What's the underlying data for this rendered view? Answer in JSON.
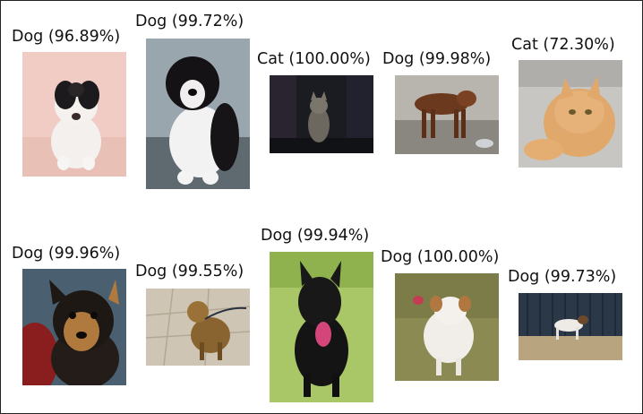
{
  "predictions": [
    {
      "label": "Dog (96.89%)",
      "subject": "dog-photo"
    },
    {
      "label": "Dog (99.72%)",
      "subject": "dog-photo"
    },
    {
      "label": "Cat (100.00%)",
      "subject": "cat-photo"
    },
    {
      "label": "Dog (99.98%)",
      "subject": "dog-photo"
    },
    {
      "label": "Cat (72.30%)",
      "subject": "cat-photo"
    },
    {
      "label": "Dog (99.96%)",
      "subject": "dog-photo"
    },
    {
      "label": "Dog (99.55%)",
      "subject": "dog-photo"
    },
    {
      "label": "Dog (99.94%)",
      "subject": "dog-photo"
    },
    {
      "label": "Dog (100.00%)",
      "subject": "dog-photo"
    },
    {
      "label": "Dog (99.73%)",
      "subject": "dog-photo"
    }
  ]
}
